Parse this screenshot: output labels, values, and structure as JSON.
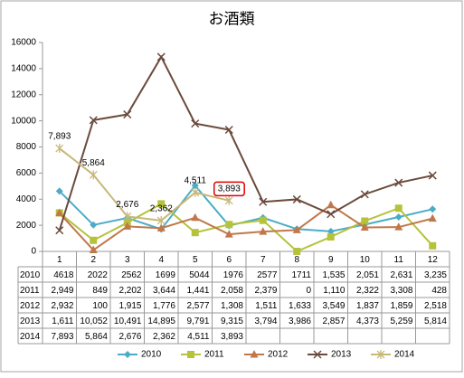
{
  "chart_data": {
    "type": "line",
    "title": "お酒類",
    "categories": [
      "1",
      "2",
      "3",
      "4",
      "5",
      "6",
      "7",
      "8",
      "9",
      "10",
      "11",
      "12"
    ],
    "ylim": [
      0,
      16000
    ],
    "yticks": [
      0,
      2000,
      4000,
      6000,
      8000,
      10000,
      12000,
      14000,
      16000
    ],
    "grid": false,
    "legend": "bottom",
    "series": [
      {
        "name": "2010",
        "color": "#4bacc6",
        "marker": "diamond",
        "values": [
          4618,
          2022,
          2562,
          1699,
          5044,
          1976,
          2577,
          1711,
          1535,
          2051,
          2631,
          3235
        ],
        "value_labels": [
          "4618",
          "2022",
          "2562",
          "1699",
          "5044",
          "1976",
          "2577",
          "1711",
          "1,535",
          "2,051",
          "2,631",
          "3,235"
        ]
      },
      {
        "name": "2011",
        "color": "#b5c23a",
        "marker": "square",
        "values": [
          2949,
          849,
          2202,
          3644,
          1441,
          2058,
          2379,
          0,
          1110,
          2322,
          3308,
          428
        ],
        "value_labels": [
          "2,949",
          "849",
          "2,202",
          "3,644",
          "1,441",
          "2,058",
          "2,379",
          "0",
          "1,110",
          "2,322",
          "3,308",
          "428"
        ]
      },
      {
        "name": "2012",
        "color": "#c0784a",
        "marker": "triangle",
        "values": [
          2932,
          100,
          1915,
          1776,
          2577,
          1308,
          1511,
          1633,
          3549,
          1837,
          1859,
          2518
        ],
        "value_labels": [
          "2,932",
          "100",
          "1,915",
          "1,776",
          "2,577",
          "1,308",
          "1,511",
          "1,633",
          "3,549",
          "1,837",
          "1,859",
          "2,518"
        ]
      },
      {
        "name": "2013",
        "color": "#6b4a3c",
        "marker": "x",
        "values": [
          1611,
          10052,
          10491,
          14895,
          9791,
          9315,
          3794,
          3986,
          2857,
          4373,
          5259,
          5814
        ],
        "value_labels": [
          "1,611",
          "10,052",
          "10,491",
          "14,895",
          "9,791",
          "9,315",
          "3,794",
          "3,986",
          "2,857",
          "4,373",
          "5,259",
          "5,814"
        ]
      },
      {
        "name": "2014",
        "color": "#c8b878",
        "marker": "star",
        "data_labels": true,
        "values": [
          7893,
          5864,
          2676,
          2362,
          4511,
          3893,
          null,
          null,
          null,
          null,
          null,
          null
        ],
        "value_labels": [
          "7,893",
          "5,864",
          "2,676",
          "2,362",
          "4,511",
          "3,893",
          null,
          null,
          null,
          null,
          null,
          null
        ]
      }
    ]
  }
}
